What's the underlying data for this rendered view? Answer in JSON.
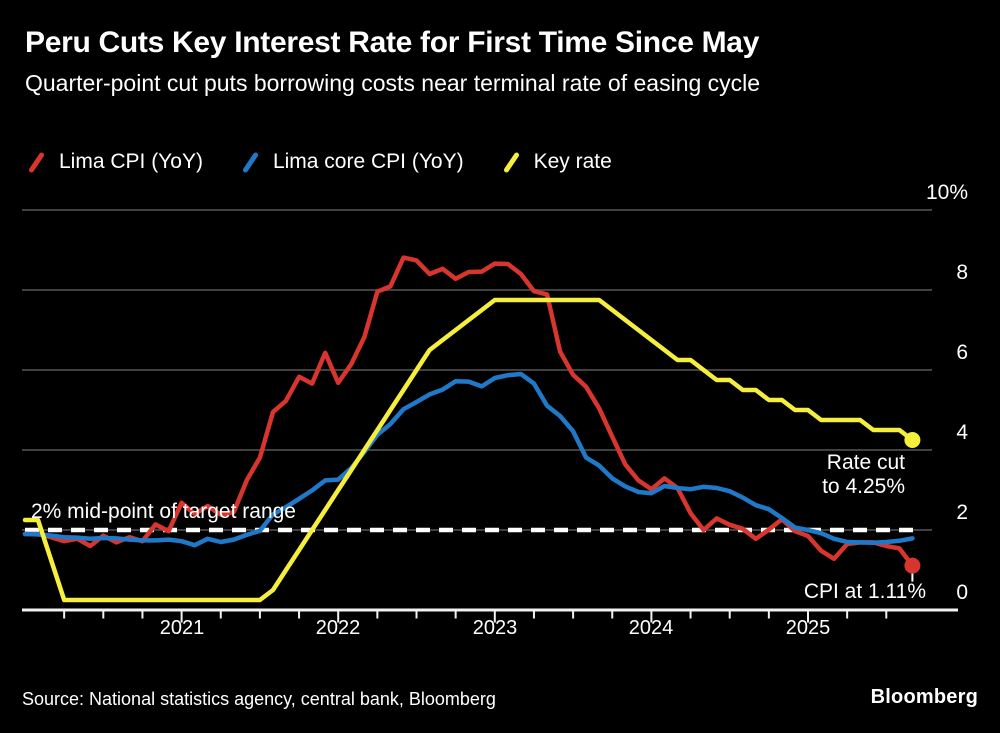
{
  "colors": {
    "background": "#000000",
    "text": "#ffffff",
    "grid": "#414141",
    "axis": "#f2f2f2",
    "reference": "#ffffff",
    "cpi": "#d8352e",
    "core_cpi": "#2079c8",
    "key_rate": "#f5ee3c"
  },
  "header": {
    "title": "Peru Cuts Key Interest Rate for First Time Since May",
    "subtitle": "Quarter-point cut puts borrowing costs near terminal rate of easing cycle"
  },
  "legend": [
    {
      "label": "Lima CPI (YoY)",
      "color": "#d8352e"
    },
    {
      "label": "Lima core CPI (YoY)",
      "color": "#2079c8"
    },
    {
      "label": "Key rate",
      "color": "#f5ee3c"
    }
  ],
  "annotations": {
    "target_range": "2% mid-point of target range",
    "rate_cut_line1": "Rate cut",
    "rate_cut_line2": "to 4.25%",
    "cpi_end": "CPI at 1.11%"
  },
  "footer": {
    "source": "Source: National statistics agency, central bank, Bloomberg",
    "brand": "Bloomberg"
  },
  "chart_data": {
    "type": "line",
    "title": "Peru Cuts Key Interest Rate for First Time Since May",
    "x_unit": "month",
    "x_start": "2020-01",
    "x_end": "2025-09",
    "ylim": [
      0,
      10
    ],
    "y_ticks": [
      10,
      8,
      6,
      4,
      2,
      0
    ],
    "y_tick_labels": [
      "10%",
      "8",
      "6",
      "4",
      "2",
      "0"
    ],
    "year_labels": [
      "2021",
      "2022",
      "2023",
      "2024",
      "2025"
    ],
    "grid": "horizontal",
    "legend_position": "top-left",
    "x_minor_ticks": "quarterly",
    "reference_line": {
      "value": 2,
      "style": "dashed",
      "label": "2% mid-point of target range"
    },
    "end_markers": [
      {
        "series": "Key rate",
        "value": 4.25,
        "label": "Rate cut to 4.25%"
      },
      {
        "series": "Lima CPI (YoY)",
        "value": 1.11,
        "label": "CPI at 1.11%"
      }
    ],
    "series": [
      {
        "name": "Lima CPI (YoY)",
        "color": "#d8352e",
        "end_dot": true,
        "values": [
          1.9,
          1.9,
          1.82,
          1.72,
          1.78,
          1.6,
          1.86,
          1.69,
          1.82,
          1.72,
          2.14,
          1.97,
          2.68,
          2.4,
          2.6,
          2.38,
          2.45,
          3.25,
          3.81,
          4.95,
          5.23,
          5.83,
          5.66,
          6.43,
          5.68,
          6.15,
          6.82,
          7.96,
          8.09,
          8.81,
          8.74,
          8.4,
          8.53,
          8.28,
          8.45,
          8.46,
          8.66,
          8.65,
          8.4,
          7.97,
          7.89,
          6.46,
          5.88,
          5.58,
          5.04,
          4.33,
          3.64,
          3.24,
          3.02,
          3.29,
          3.05,
          2.42,
          2.0,
          2.29,
          2.13,
          2.03,
          1.78,
          2.01,
          2.27,
          1.97,
          1.85,
          1.48,
          1.28,
          1.65,
          1.69,
          1.69,
          1.6,
          1.54,
          1.11
        ]
      },
      {
        "name": "Lima core CPI (YoY)",
        "color": "#2079c8",
        "end_dot": false,
        "values": [
          1.9,
          1.89,
          1.86,
          1.82,
          1.81,
          1.78,
          1.8,
          1.79,
          1.76,
          1.74,
          1.74,
          1.76,
          1.72,
          1.62,
          1.78,
          1.7,
          1.76,
          1.88,
          1.98,
          2.39,
          2.57,
          2.78,
          2.99,
          3.24,
          3.26,
          3.55,
          3.95,
          4.38,
          4.65,
          5.02,
          5.2,
          5.39,
          5.51,
          5.72,
          5.71,
          5.59,
          5.8,
          5.87,
          5.9,
          5.66,
          5.11,
          4.85,
          4.47,
          3.81,
          3.61,
          3.29,
          3.09,
          2.95,
          2.92,
          3.1,
          3.05,
          3.02,
          3.08,
          3.05,
          2.97,
          2.81,
          2.62,
          2.52,
          2.3,
          2.06,
          2.0,
          1.92,
          1.78,
          1.7,
          1.69,
          1.68,
          1.7,
          1.73,
          1.79
        ]
      },
      {
        "name": "Key rate",
        "color": "#f5ee3c",
        "end_dot": true,
        "values": [
          2.25,
          2.25,
          1.25,
          0.25,
          0.25,
          0.25,
          0.25,
          0.25,
          0.25,
          0.25,
          0.25,
          0.25,
          0.25,
          0.25,
          0.25,
          0.25,
          0.25,
          0.25,
          0.25,
          0.5,
          1.0,
          1.5,
          2.0,
          2.5,
          3.0,
          3.5,
          4.0,
          4.5,
          5.0,
          5.5,
          6.0,
          6.5,
          6.75,
          7.0,
          7.25,
          7.5,
          7.75,
          7.75,
          7.75,
          7.75,
          7.75,
          7.75,
          7.75,
          7.75,
          7.75,
          7.5,
          7.25,
          7.0,
          6.75,
          6.5,
          6.25,
          6.25,
          6.0,
          5.75,
          5.75,
          5.5,
          5.5,
          5.25,
          5.25,
          5.0,
          5.0,
          4.75,
          4.75,
          4.75,
          4.75,
          4.5,
          4.5,
          4.5,
          4.25
        ]
      }
    ]
  }
}
